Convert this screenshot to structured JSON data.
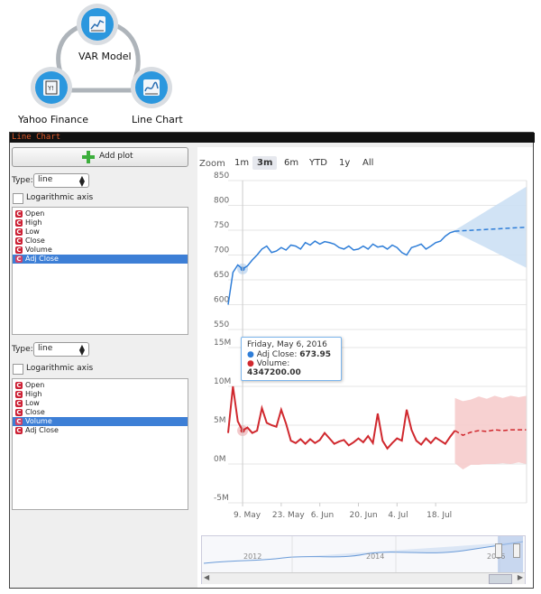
{
  "workflow": {
    "nodes": [
      {
        "id": "var",
        "label": "VAR Model",
        "icon": "var-model-icon"
      },
      {
        "id": "yahoo",
        "label": "Yahoo Finance",
        "icon": "yahoo-finance-icon"
      },
      {
        "id": "linechart",
        "label": "Line Chart",
        "icon": "line-chart-icon"
      }
    ]
  },
  "window": {
    "title": "Line Chart"
  },
  "sidebar": {
    "add_plot_label": "Add plot",
    "type_label": "Type:",
    "log_axis_label": "Logarithmic axis",
    "panels": [
      {
        "type_value": "line",
        "log_checked": false,
        "items": [
          "Open",
          "High",
          "Low",
          "Close",
          "Volume",
          "Adj Close"
        ],
        "selected": "Adj Close"
      },
      {
        "type_value": "line",
        "log_checked": false,
        "items": [
          "Open",
          "High",
          "Low",
          "Close",
          "Volume",
          "Adj Close"
        ],
        "selected": "Volume"
      }
    ]
  },
  "zoom": {
    "label": "Zoom",
    "buttons": [
      "1m",
      "3m",
      "6m",
      "YTD",
      "1y",
      "All"
    ],
    "active": "3m"
  },
  "tooltip": {
    "date": "Friday, May 6, 2016",
    "series1_name": "Adj Close",
    "series1_value": "673.95",
    "series2_name": "Volume",
    "series2_value": "4347200.00"
  },
  "navigator": {
    "years": [
      "2012",
      "2014",
      "2016"
    ]
  },
  "colors": {
    "adj_close": "#2f7ed8",
    "volume": "#d0282e",
    "forecast_fill_blue": "#c9def3",
    "forecast_fill_red": "#f6c9c9",
    "window_title_text": "#e05a2a"
  },
  "chart_data": [
    {
      "type": "line",
      "series": [
        {
          "name": "Adj Close",
          "values": [
            600,
            665,
            680,
            672,
            678,
            690,
            700,
            712,
            718,
            705,
            708,
            715,
            710,
            720,
            718,
            712,
            725,
            720,
            728,
            722,
            727,
            725,
            722,
            715,
            712,
            718,
            710,
            712,
            718,
            712,
            722,
            716,
            718,
            712,
            720,
            715,
            705,
            700,
            715,
            718,
            722,
            712,
            718,
            725,
            728,
            738,
            745,
            748
          ]
        }
      ],
      "forecast": {
        "values": [
          748,
          749,
          750,
          751,
          752,
          753,
          754,
          755,
          756
        ]
      },
      "y_ticks": [
        "550",
        "600",
        "650",
        "700",
        "750",
        "800",
        "850"
      ],
      "ylim": [
        550,
        850
      ]
    },
    {
      "type": "line",
      "series": [
        {
          "name": "Volume",
          "values": [
            4.0,
            10.0,
            5.5,
            4.3,
            4.7,
            4.0,
            4.3,
            7.2,
            5.3,
            5.0,
            4.8,
            7.0,
            5.2,
            3.0,
            2.7,
            3.2,
            2.6,
            3.2,
            2.7,
            3.1,
            4.0,
            3.3,
            2.6,
            2.9,
            3.1,
            2.4,
            2.8,
            3.3,
            2.8,
            3.6,
            2.7,
            6.5,
            3.0,
            2.0,
            2.7,
            3.3,
            3.0,
            7.0,
            4.4,
            3.0,
            2.5,
            3.3,
            2.7,
            3.4,
            3.0,
            2.6,
            3.5,
            4.3
          ]
        }
      ],
      "forecast": {
        "values": [
          4.3,
          3.7,
          4.1,
          4.3,
          4.2,
          4.4,
          4.3,
          4.4,
          4.4,
          4.4
        ]
      },
      "y_ticks": [
        "-5M",
        "0M",
        "5M",
        "10M",
        "15M"
      ],
      "ylim": [
        -5,
        15
      ]
    }
  ],
  "x_axis": {
    "ticks": [
      "9. May",
      "23. May",
      "6. Jun",
      "20. Jun",
      "4. Jul",
      "18. Jul"
    ]
  }
}
